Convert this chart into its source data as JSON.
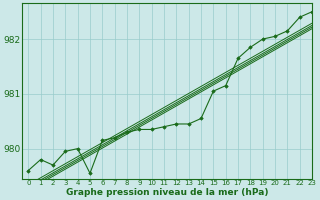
{
  "xlabel": "Graphe pression niveau de la mer (hPa)",
  "xlim": [
    -0.5,
    23
  ],
  "ylim": [
    979.45,
    982.65
  ],
  "yticks": [
    980,
    981,
    982
  ],
  "xticks": [
    0,
    1,
    2,
    3,
    4,
    5,
    6,
    7,
    8,
    9,
    10,
    11,
    12,
    13,
    14,
    15,
    16,
    17,
    18,
    19,
    20,
    21,
    22,
    23
  ],
  "bg_color": "#cce8e8",
  "grid_color": "#99cccc",
  "line_color": "#1a6b1a",
  "actual_data": [
    979.6,
    979.8,
    979.7,
    979.95,
    980.0,
    979.55,
    980.15,
    980.2,
    980.3,
    980.35,
    980.35,
    980.4,
    980.45,
    980.45,
    980.55,
    981.05,
    981.15,
    981.65,
    981.85,
    982.0,
    982.05,
    982.15,
    982.4,
    982.5
  ],
  "trend_offsets": [
    -0.06,
    -0.03,
    0.0,
    0.04
  ],
  "figsize": [
    3.2,
    2.0
  ],
  "dpi": 100
}
